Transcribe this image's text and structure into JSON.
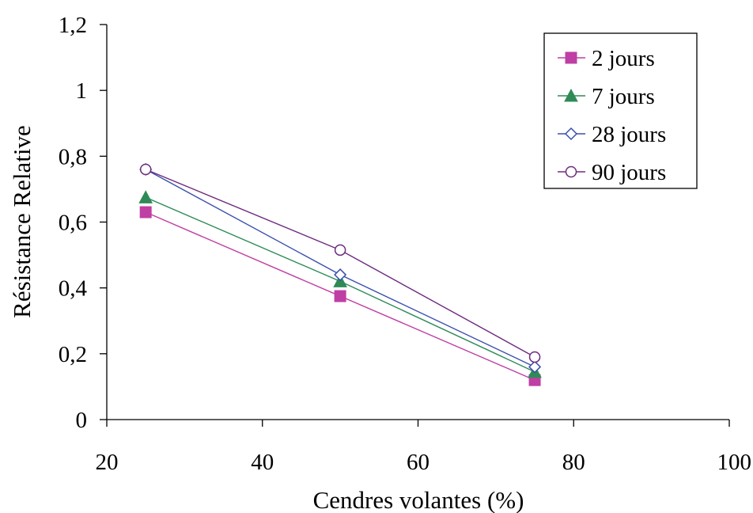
{
  "chart_data": {
    "type": "line",
    "title": "",
    "xlabel": "Cendres volantes (%)",
    "ylabel": "Résistance Relative",
    "xlim": [
      20,
      100
    ],
    "ylim": [
      0,
      1.2
    ],
    "xticks": [
      20,
      40,
      60,
      80,
      100
    ],
    "yticks": [
      0,
      0.2,
      0.4,
      0.6,
      0.8,
      1,
      1.2
    ],
    "xtick_labels": [
      "20",
      "40",
      "60",
      "80",
      "100"
    ],
    "ytick_labels": [
      "0",
      "0,2",
      "0,4",
      "0,6",
      "0,8",
      "1",
      "1,2"
    ],
    "grid": false,
    "legend_position": "top-right",
    "x": [
      25,
      50,
      75
    ],
    "series": [
      {
        "name": "2 jours",
        "values": [
          0.63,
          0.375,
          0.12
        ],
        "color": "#bf3fa4",
        "marker": "square-filled"
      },
      {
        "name": "7 jours",
        "values": [
          0.675,
          0.42,
          0.145
        ],
        "color": "#2e8b57",
        "marker": "triangle-filled"
      },
      {
        "name": "28 jours",
        "values": [
          0.76,
          0.44,
          0.16
        ],
        "color": "#3b4fae",
        "marker": "diamond-open"
      },
      {
        "name": "90 jours",
        "values": [
          0.76,
          0.515,
          0.19
        ],
        "color": "#6e2a7e",
        "marker": "circle-open"
      }
    ]
  }
}
